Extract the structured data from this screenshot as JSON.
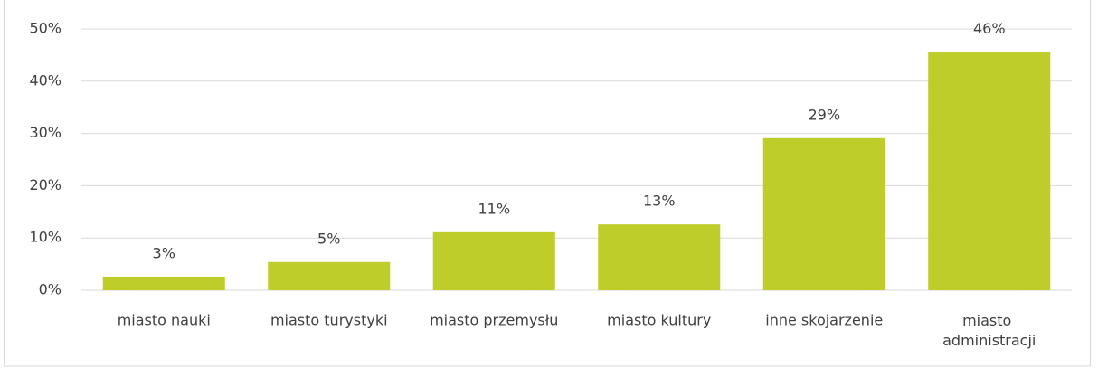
{
  "chart_data": {
    "type": "bar",
    "categories": [
      "miasto nauki",
      "miasto turystyki",
      "miasto przemysłu",
      "miasto kultury",
      "inne skojarzenie",
      "miasto administracji"
    ],
    "values": [
      2.6,
      5.4,
      11.1,
      12.6,
      29.1,
      45.6
    ],
    "value_labels": [
      "3%",
      "5%",
      "11%",
      "13%",
      "29%",
      "46%"
    ],
    "color": "#bfcd2b",
    "ylim": [
      0,
      50
    ],
    "yticks": [
      {
        "value": 0,
        "label": "0%"
      },
      {
        "value": 10,
        "label": "10%"
      },
      {
        "value": 20,
        "label": "20%"
      },
      {
        "value": 30,
        "label": "30%"
      },
      {
        "value": 40,
        "label": "40%"
      },
      {
        "value": 50,
        "label": "50%"
      }
    ],
    "grid": true
  }
}
